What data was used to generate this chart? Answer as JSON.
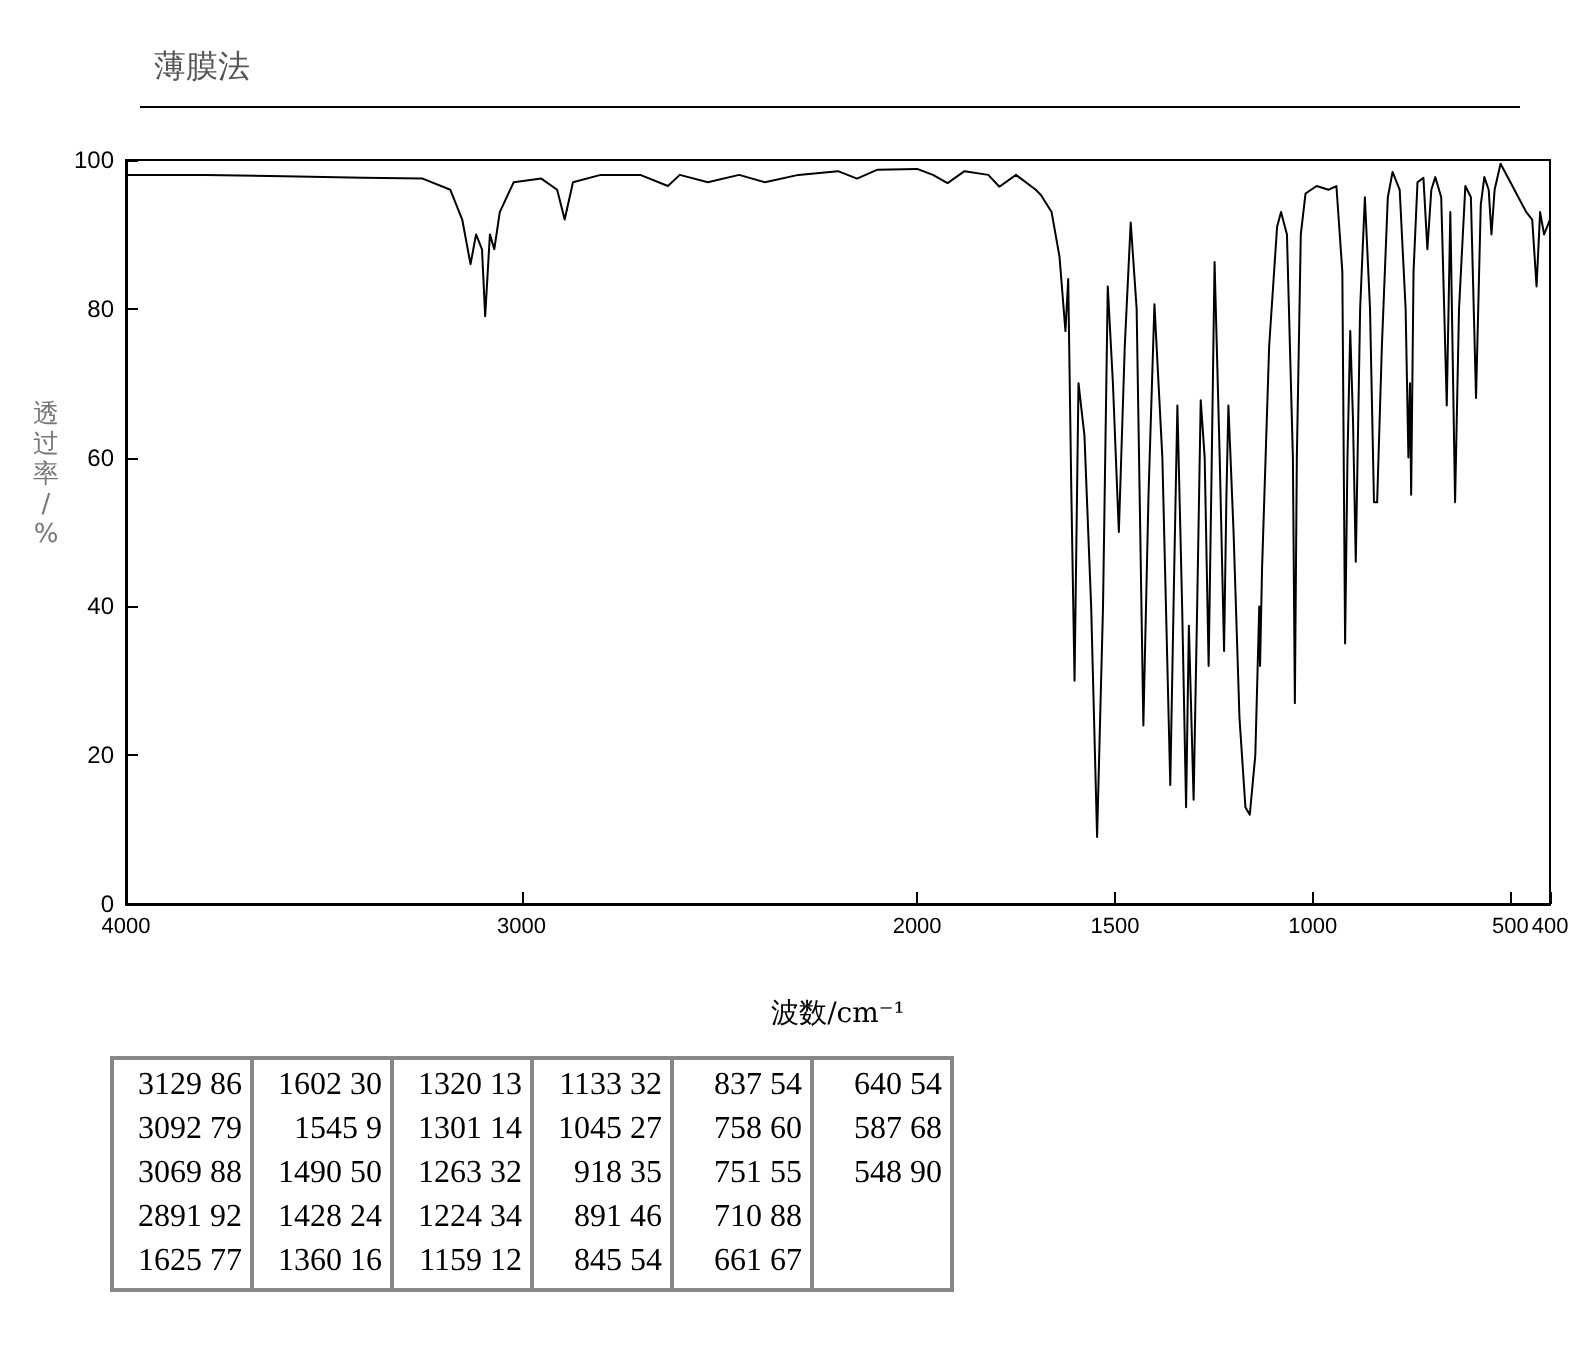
{
  "chart_data": {
    "type": "line",
    "title": "薄膜法",
    "xlabel": "波数/cm⁻¹",
    "ylabel": "透过率/%",
    "xlim": [
      4000,
      400
    ],
    "ylim": [
      0,
      100
    ],
    "xticks": [
      4000,
      3000,
      2000,
      1500,
      1000,
      500,
      400
    ],
    "yticks": [
      0,
      20,
      40,
      60,
      80,
      100
    ],
    "grid": false,
    "marker": "none",
    "series": [
      {
        "color": "#000000",
        "x": [
          4000,
          3800,
          3600,
          3400,
          3250,
          3180,
          3150,
          3129,
          3115,
          3100,
          3092,
          3080,
          3069,
          3055,
          3020,
          2950,
          2910,
          2891,
          2870,
          2800,
          2700,
          2630,
          2600,
          2529,
          2450,
          2385,
          2300,
          2200,
          2152,
          2100,
          2000,
          1960,
          1923,
          1880,
          1820,
          1792,
          1750,
          1700,
          1687,
          1660,
          1640,
          1625,
          1618,
          1610,
          1602,
          1592,
          1577,
          1560,
          1545,
          1530,
          1518,
          1505,
          1490,
          1475,
          1460,
          1445,
          1428,
          1415,
          1400,
          1380,
          1360,
          1350,
          1342,
          1330,
          1320,
          1313,
          1301,
          1292,
          1283,
          1273,
          1263,
          1255,
          1248,
          1235,
          1224,
          1218,
          1213,
          1200,
          1185,
          1170,
          1159,
          1145,
          1135,
          1133,
          1128,
          1110,
          1090,
          1080,
          1065,
          1050,
          1045,
          1040,
          1030,
          1018,
          990,
          960,
          940,
          925,
          918,
          912,
          905,
          898,
          891,
          880,
          868,
          855,
          845,
          837,
          825,
          810,
          798,
          780,
          765,
          758,
          754,
          751,
          745,
          735,
          720,
          710,
          700,
          690,
          675,
          661,
          652,
          640,
          630,
          614,
          600,
          587,
          575,
          566,
          555,
          548,
          540,
          525,
          500,
          480,
          460,
          445,
          434,
          425,
          415,
          400
        ],
        "values": [
          98,
          98,
          97.8,
          97.6,
          97.5,
          96,
          92,
          86,
          90,
          88,
          79,
          90,
          88,
          93,
          97,
          97.5,
          96,
          92,
          97,
          98,
          98,
          96.5,
          98,
          97,
          98,
          97,
          98,
          98.5,
          97.5,
          98.7,
          98.8,
          98,
          96.9,
          98.5,
          98,
          96.4,
          98,
          96,
          95.3,
          93,
          87,
          77,
          84,
          55,
          30,
          70,
          63,
          40,
          9,
          40,
          83,
          70,
          50,
          75,
          91.6,
          80,
          24,
          55,
          80.6,
          60,
          16,
          45,
          67,
          40,
          13,
          37.4,
          14,
          40,
          67.7,
          60,
          32,
          60,
          86.3,
          60,
          34,
          55,
          67,
          50,
          25,
          13,
          12,
          20,
          40,
          32,
          45,
          75,
          91,
          93,
          90,
          60,
          27,
          60,
          90,
          95.5,
          96.5,
          96,
          96.5,
          85,
          35,
          60,
          77,
          65,
          46,
          80,
          95,
          80,
          54,
          54,
          75,
          95,
          98.4,
          96,
          80,
          60,
          70,
          55,
          85,
          97,
          97.6,
          88,
          96,
          97.7,
          95,
          67,
          93,
          54,
          80,
          96.5,
          95,
          68,
          94,
          97.7,
          96,
          90,
          96,
          99.5,
          97,
          95,
          93,
          92,
          83,
          93,
          90,
          92
        ]
      }
    ],
    "annotations": [
      "3129 86",
      "3092 79",
      "3069 88",
      "2891 92",
      "1625 77",
      "1602 30",
      "1545 9",
      "1490 50",
      "1428 24",
      "1360 16",
      "1320 13",
      "1301 14",
      "1263 32",
      "1224 34",
      "1159 12",
      "1133 32",
      "1045 27",
      "918 35",
      "891 46",
      "845 54",
      "837 54",
      "758 60",
      "751 55",
      "710 88",
      "661 67",
      "640 54",
      "587 68",
      "548 90"
    ]
  }
}
